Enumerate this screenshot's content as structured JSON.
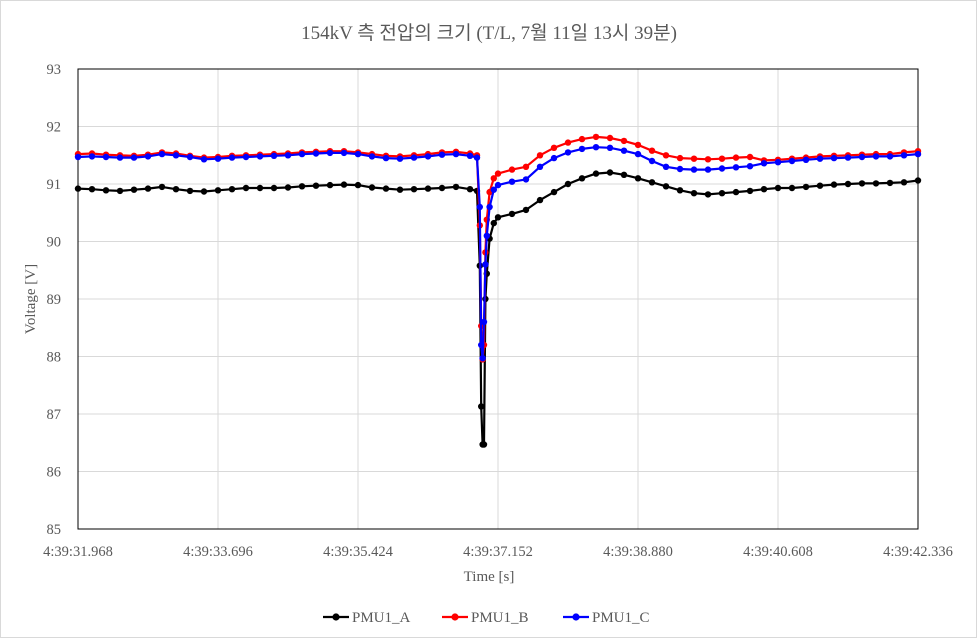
{
  "chart_data": {
    "type": "line",
    "title": "154kV 측 전압의 크기 (T/L, 7월 11일 13시 39분)",
    "xlabel": "Time [s]",
    "ylabel": "Voltage [V]",
    "xlim": [
      0,
      6
    ],
    "ylim": [
      85,
      93
    ],
    "y_ticks": [
      85,
      86,
      87,
      88,
      89,
      90,
      91,
      92,
      93
    ],
    "x_ticks": [
      {
        "v": 0,
        "label": "4:39:31.968"
      },
      {
        "v": 1,
        "label": "4:39:33.696"
      },
      {
        "v": 2,
        "label": "4:39:35.424"
      },
      {
        "v": 3,
        "label": "4:39:37.152"
      },
      {
        "v": 4,
        "label": "4:39:38.880"
      },
      {
        "v": 5,
        "label": "4:39:40.608"
      },
      {
        "v": 6,
        "label": "4:39:42.336"
      }
    ],
    "grid": true,
    "legend_position": "bottom",
    "series": [
      {
        "name": "PMU1_A",
        "color": "#000000",
        "points": [
          [
            0.0,
            90.92
          ],
          [
            0.1,
            90.91
          ],
          [
            0.2,
            90.89
          ],
          [
            0.3,
            90.88
          ],
          [
            0.4,
            90.9
          ],
          [
            0.5,
            90.92
          ],
          [
            0.6,
            90.95
          ],
          [
            0.7,
            90.91
          ],
          [
            0.8,
            90.88
          ],
          [
            0.9,
            90.87
          ],
          [
            1.0,
            90.89
          ],
          [
            1.1,
            90.91
          ],
          [
            1.2,
            90.93
          ],
          [
            1.3,
            90.93
          ],
          [
            1.4,
            90.93
          ],
          [
            1.5,
            90.94
          ],
          [
            1.6,
            90.96
          ],
          [
            1.7,
            90.97
          ],
          [
            1.8,
            90.98
          ],
          [
            1.9,
            90.99
          ],
          [
            2.0,
            90.98
          ],
          [
            2.1,
            90.94
          ],
          [
            2.2,
            90.92
          ],
          [
            2.3,
            90.9
          ],
          [
            2.4,
            90.91
          ],
          [
            2.5,
            90.92
          ],
          [
            2.6,
            90.93
          ],
          [
            2.7,
            90.95
          ],
          [
            2.8,
            90.91
          ],
          [
            2.85,
            90.88
          ],
          [
            2.87,
            89.58
          ],
          [
            2.88,
            87.13
          ],
          [
            2.89,
            86.47
          ],
          [
            2.9,
            86.47
          ],
          [
            2.91,
            89.0
          ],
          [
            2.92,
            89.44
          ],
          [
            2.94,
            90.05
          ],
          [
            2.97,
            90.32
          ],
          [
            3.0,
            90.42
          ],
          [
            3.1,
            90.48
          ],
          [
            3.2,
            90.55
          ],
          [
            3.3,
            90.72
          ],
          [
            3.4,
            90.86
          ],
          [
            3.5,
            91.0
          ],
          [
            3.6,
            91.1
          ],
          [
            3.7,
            91.18
          ],
          [
            3.8,
            91.2
          ],
          [
            3.9,
            91.16
          ],
          [
            4.0,
            91.1
          ],
          [
            4.1,
            91.03
          ],
          [
            4.2,
            90.96
          ],
          [
            4.3,
            90.89
          ],
          [
            4.4,
            90.84
          ],
          [
            4.5,
            90.82
          ],
          [
            4.6,
            90.84
          ],
          [
            4.7,
            90.86
          ],
          [
            4.8,
            90.88
          ],
          [
            4.9,
            90.91
          ],
          [
            5.0,
            90.93
          ],
          [
            5.1,
            90.93
          ],
          [
            5.2,
            90.95
          ],
          [
            5.3,
            90.97
          ],
          [
            5.4,
            90.99
          ],
          [
            5.5,
            91.0
          ],
          [
            5.6,
            91.01
          ],
          [
            5.7,
            91.01
          ],
          [
            5.8,
            91.02
          ],
          [
            5.9,
            91.03
          ],
          [
            6.0,
            91.06
          ]
        ]
      },
      {
        "name": "PMU1_B",
        "color": "#ff0000",
        "points": [
          [
            0.0,
            91.52
          ],
          [
            0.1,
            91.53
          ],
          [
            0.2,
            91.51
          ],
          [
            0.3,
            91.5
          ],
          [
            0.4,
            91.49
          ],
          [
            0.5,
            91.51
          ],
          [
            0.6,
            91.55
          ],
          [
            0.7,
            91.53
          ],
          [
            0.8,
            91.49
          ],
          [
            0.9,
            91.46
          ],
          [
            1.0,
            91.47
          ],
          [
            1.1,
            91.49
          ],
          [
            1.2,
            91.5
          ],
          [
            1.3,
            91.51
          ],
          [
            1.4,
            91.52
          ],
          [
            1.5,
            91.53
          ],
          [
            1.6,
            91.55
          ],
          [
            1.7,
            91.56
          ],
          [
            1.8,
            91.57
          ],
          [
            1.9,
            91.57
          ],
          [
            2.0,
            91.55
          ],
          [
            2.1,
            91.52
          ],
          [
            2.2,
            91.49
          ],
          [
            2.3,
            91.48
          ],
          [
            2.4,
            91.5
          ],
          [
            2.5,
            91.52
          ],
          [
            2.6,
            91.55
          ],
          [
            2.7,
            91.56
          ],
          [
            2.8,
            91.53
          ],
          [
            2.85,
            91.5
          ],
          [
            2.87,
            90.28
          ],
          [
            2.88,
            88.53
          ],
          [
            2.89,
            87.95
          ],
          [
            2.9,
            88.2
          ],
          [
            2.91,
            89.81
          ],
          [
            2.92,
            90.38
          ],
          [
            2.94,
            90.86
          ],
          [
            2.97,
            91.1
          ],
          [
            3.0,
            91.18
          ],
          [
            3.1,
            91.25
          ],
          [
            3.2,
            91.3
          ],
          [
            3.3,
            91.5
          ],
          [
            3.4,
            91.63
          ],
          [
            3.5,
            91.72
          ],
          [
            3.6,
            91.78
          ],
          [
            3.7,
            91.82
          ],
          [
            3.8,
            91.8
          ],
          [
            3.9,
            91.75
          ],
          [
            4.0,
            91.68
          ],
          [
            4.1,
            91.58
          ],
          [
            4.2,
            91.5
          ],
          [
            4.3,
            91.45
          ],
          [
            4.4,
            91.44
          ],
          [
            4.5,
            91.43
          ],
          [
            4.6,
            91.44
          ],
          [
            4.7,
            91.46
          ],
          [
            4.8,
            91.47
          ],
          [
            4.9,
            91.41
          ],
          [
            5.0,
            91.42
          ],
          [
            5.1,
            91.44
          ],
          [
            5.2,
            91.46
          ],
          [
            5.3,
            91.48
          ],
          [
            5.4,
            91.49
          ],
          [
            5.5,
            91.5
          ],
          [
            5.6,
            91.51
          ],
          [
            5.7,
            91.52
          ],
          [
            5.8,
            91.52
          ],
          [
            5.9,
            91.55
          ],
          [
            6.0,
            91.57
          ]
        ]
      },
      {
        "name": "PMU1_C",
        "color": "#0000ff",
        "points": [
          [
            0.0,
            91.47
          ],
          [
            0.1,
            91.48
          ],
          [
            0.2,
            91.47
          ],
          [
            0.3,
            91.46
          ],
          [
            0.4,
            91.46
          ],
          [
            0.5,
            91.48
          ],
          [
            0.6,
            91.52
          ],
          [
            0.7,
            91.5
          ],
          [
            0.8,
            91.47
          ],
          [
            0.9,
            91.43
          ],
          [
            1.0,
            91.44
          ],
          [
            1.1,
            91.46
          ],
          [
            1.2,
            91.47
          ],
          [
            1.3,
            91.48
          ],
          [
            1.4,
            91.49
          ],
          [
            1.5,
            91.5
          ],
          [
            1.6,
            91.52
          ],
          [
            1.7,
            91.53
          ],
          [
            1.8,
            91.54
          ],
          [
            1.9,
            91.54
          ],
          [
            2.0,
            91.52
          ],
          [
            2.1,
            91.48
          ],
          [
            2.2,
            91.45
          ],
          [
            2.3,
            91.44
          ],
          [
            2.4,
            91.46
          ],
          [
            2.5,
            91.48
          ],
          [
            2.6,
            91.51
          ],
          [
            2.7,
            91.52
          ],
          [
            2.8,
            91.49
          ],
          [
            2.85,
            91.46
          ],
          [
            2.87,
            90.6
          ],
          [
            2.88,
            88.2
          ],
          [
            2.89,
            87.97
          ],
          [
            2.9,
            88.6
          ],
          [
            2.91,
            89.6
          ],
          [
            2.92,
            90.1
          ],
          [
            2.94,
            90.6
          ],
          [
            2.97,
            90.9
          ],
          [
            3.0,
            90.98
          ],
          [
            3.1,
            91.04
          ],
          [
            3.2,
            91.08
          ],
          [
            3.3,
            91.3
          ],
          [
            3.4,
            91.45
          ],
          [
            3.5,
            91.55
          ],
          [
            3.6,
            91.61
          ],
          [
            3.7,
            91.64
          ],
          [
            3.8,
            91.63
          ],
          [
            3.9,
            91.58
          ],
          [
            4.0,
            91.52
          ],
          [
            4.1,
            91.4
          ],
          [
            4.2,
            91.3
          ],
          [
            4.3,
            91.26
          ],
          [
            4.4,
            91.25
          ],
          [
            4.5,
            91.25
          ],
          [
            4.6,
            91.27
          ],
          [
            4.7,
            91.29
          ],
          [
            4.8,
            91.31
          ],
          [
            4.9,
            91.36
          ],
          [
            5.0,
            91.38
          ],
          [
            5.1,
            91.4
          ],
          [
            5.2,
            91.42
          ],
          [
            5.3,
            91.44
          ],
          [
            5.4,
            91.45
          ],
          [
            5.5,
            91.46
          ],
          [
            5.6,
            91.47
          ],
          [
            5.7,
            91.48
          ],
          [
            5.8,
            91.48
          ],
          [
            5.9,
            91.5
          ],
          [
            6.0,
            91.52
          ]
        ]
      }
    ]
  }
}
